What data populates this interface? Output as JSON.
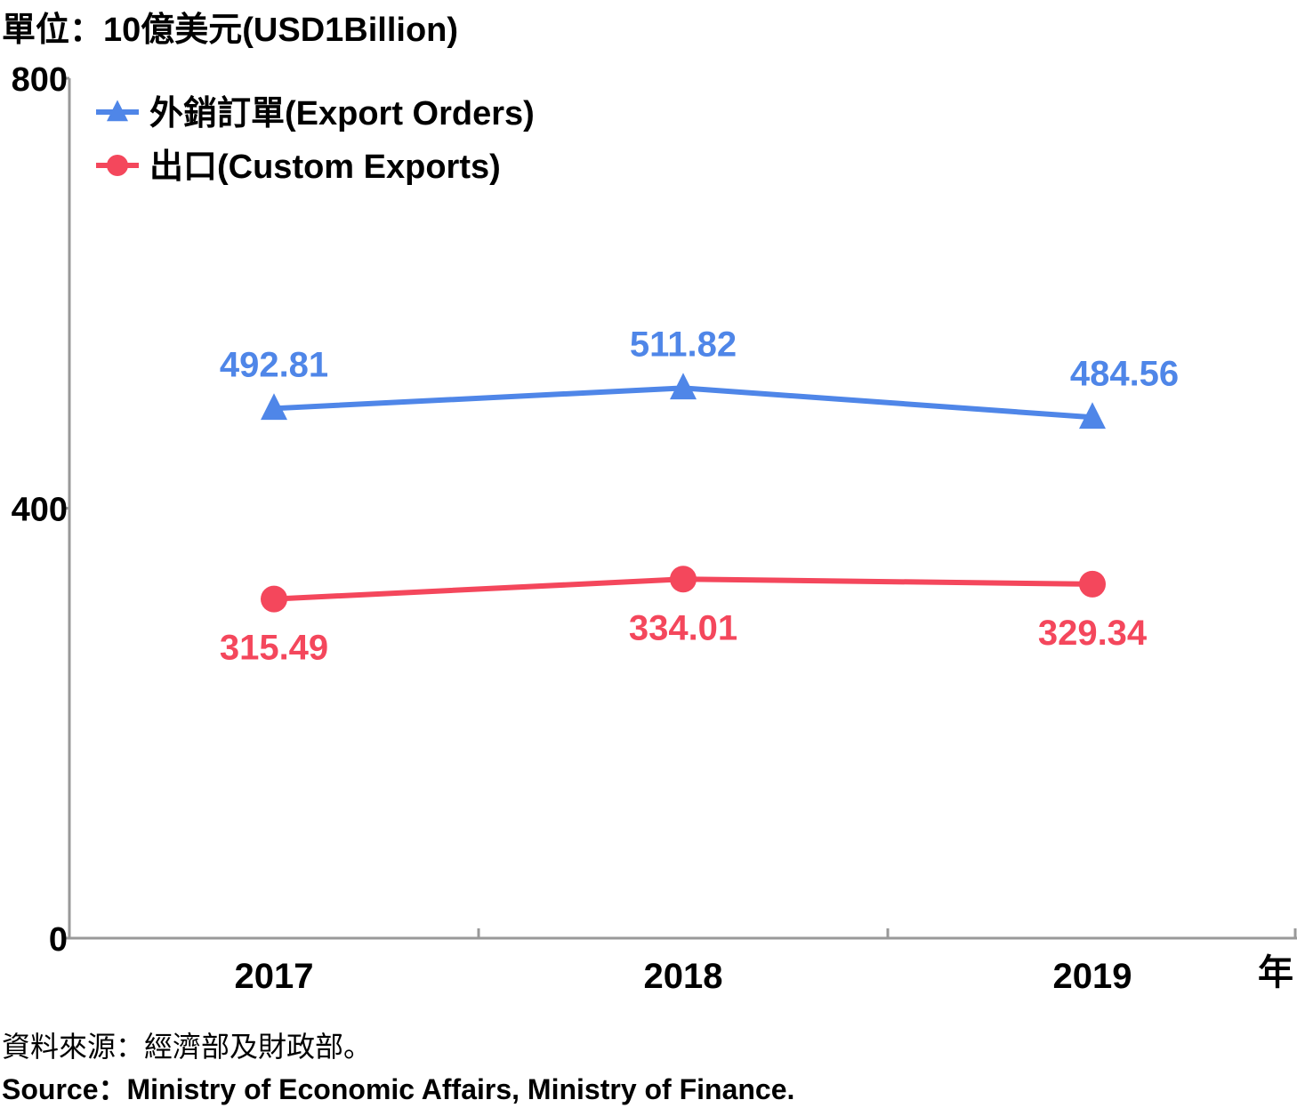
{
  "unit_label": "單位：10億美元(USD1Billion)",
  "x_unit_label": "年",
  "source_zh": "資料來源：經濟部及財政部。",
  "source_en": "Source：Ministry of Economic Affairs, Ministry of Finance.",
  "chart_data": {
    "type": "line",
    "categories": [
      "2017",
      "2018",
      "2019"
    ],
    "yticks": [
      "0",
      "400",
      "800"
    ],
    "ylim": [
      0,
      800
    ],
    "grid": false,
    "legend_position": "top-left",
    "series": [
      {
        "name": "外銷訂單(Export Orders)",
        "marker": "triangle",
        "color": "#4f86e8",
        "values": [
          492.81,
          511.82,
          484.56
        ],
        "labels": [
          "492.81",
          "511.82",
          "484.56"
        ]
      },
      {
        "name": "出口(Custom Exports)",
        "marker": "circle",
        "color": "#f4475c",
        "values": [
          315.49,
          334.01,
          329.34
        ],
        "labels": [
          "315.49",
          "334.01",
          "329.34"
        ]
      }
    ]
  }
}
